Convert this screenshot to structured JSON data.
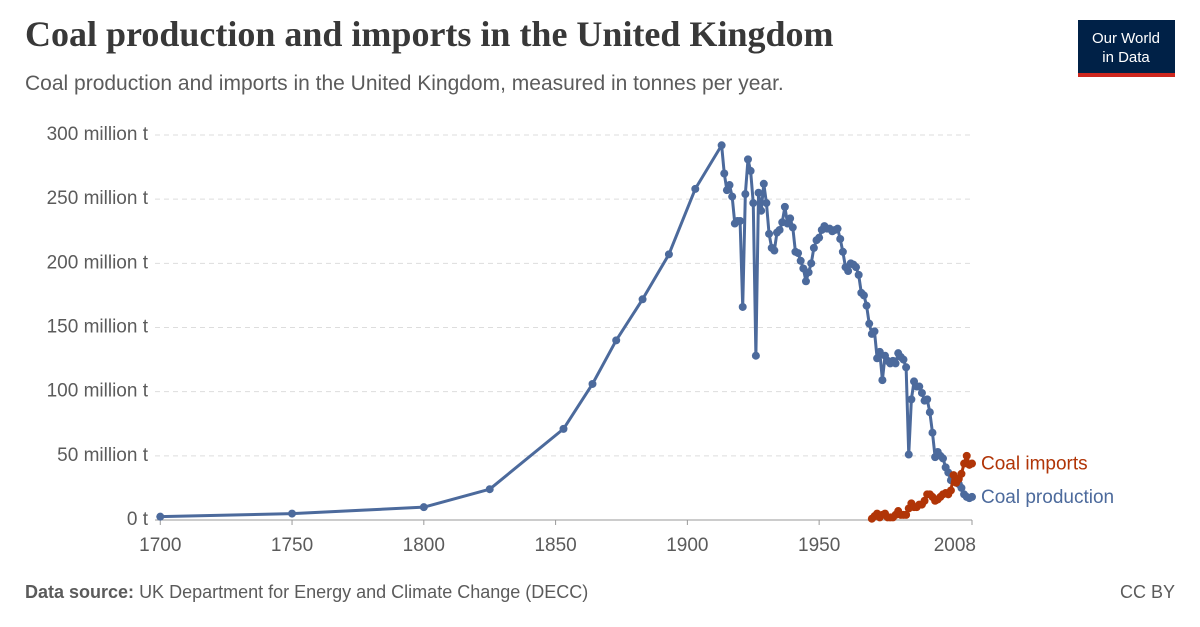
{
  "chart_data": {
    "type": "line",
    "title": "Coal production and imports in the United Kingdom",
    "subtitle": "Coal production and imports in the United Kingdom, measured in tonnes per year.",
    "xlim": [
      1698,
      2008
    ],
    "xticks": [
      1700,
      1750,
      1800,
      1850,
      1900,
      1950,
      2008
    ],
    "ylim": [
      0,
      300000000
    ],
    "yticks": [
      {
        "value": 0,
        "label": "0 t"
      },
      {
        "value": 50000000,
        "label": "50 million t"
      },
      {
        "value": 100000000,
        "label": "100 million t"
      },
      {
        "value": 150000000,
        "label": "150 million t"
      },
      {
        "value": 200000000,
        "label": "200 million t"
      },
      {
        "value": 250000000,
        "label": "250 million t"
      },
      {
        "value": 300000000,
        "label": "300 million t"
      }
    ],
    "grid": true,
    "series": [
      {
        "name": "Coal production",
        "color": "#4c6a9c",
        "x": [
          1700,
          1750,
          1800,
          1825,
          1853,
          1864,
          1873,
          1883,
          1893,
          1903,
          1913,
          1914,
          1915,
          1916,
          1917,
          1918,
          1919,
          1920,
          1921,
          1922,
          1923,
          1924,
          1925,
          1926,
          1927,
          1928,
          1929,
          1930,
          1931,
          1932,
          1933,
          1934,
          1935,
          1936,
          1937,
          1938,
          1939,
          1940,
          1941,
          1942,
          1943,
          1944,
          1945,
          1946,
          1947,
          1948,
          1949,
          1950,
          1951,
          1952,
          1953,
          1954,
          1955,
          1956,
          1957,
          1958,
          1959,
          1960,
          1961,
          1962,
          1963,
          1964,
          1965,
          1966,
          1967,
          1968,
          1969,
          1970,
          1971,
          1972,
          1973,
          1974,
          1975,
          1976,
          1977,
          1978,
          1979,
          1980,
          1981,
          1982,
          1983,
          1984,
          1985,
          1986,
          1987,
          1988,
          1989,
          1990,
          1991,
          1992,
          1993,
          1994,
          1995,
          1996,
          1997,
          1998,
          1999,
          2000,
          2001,
          2002,
          2003,
          2004,
          2005,
          2006,
          2007,
          2008
        ],
        "values": [
          2600000,
          5000000,
          10000000,
          24000000,
          71000000,
          106000000,
          140000000,
          172000000,
          207000000,
          258000000,
          292000000,
          270000000,
          257000000,
          261000000,
          252000000,
          231000000,
          233000000,
          233000000,
          166000000,
          254000000,
          281000000,
          272000000,
          247000000,
          128000000,
          255000000,
          241000000,
          262000000,
          247000000,
          223000000,
          212000000,
          210000000,
          224000000,
          226000000,
          232000000,
          244000000,
          231000000,
          235000000,
          228000000,
          209000000,
          208000000,
          202000000,
          196000000,
          186000000,
          193000000,
          200000000,
          212000000,
          218000000,
          220000000,
          226000000,
          229000000,
          227000000,
          227000000,
          225000000,
          226000000,
          227000000,
          219000000,
          209000000,
          197000000,
          194000000,
          200000000,
          199000000,
          197000000,
          191000000,
          177000000,
          175000000,
          167000000,
          153000000,
          145000000,
          147000000,
          126000000,
          131000000,
          109000000,
          128000000,
          124000000,
          122000000,
          124000000,
          122000000,
          130000000,
          127000000,
          125000000,
          119000000,
          51000000,
          94000000,
          108000000,
          104000000,
          104000000,
          99000000,
          93000000,
          94000000,
          84000000,
          68000000,
          49000000,
          53000000,
          50000000,
          48000000,
          41000000,
          37000000,
          31000000,
          32000000,
          30000000,
          28000000,
          25000000,
          20000000,
          18000000,
          17000000,
          18000000
        ]
      },
      {
        "name": "Coal imports",
        "color": "#b13507",
        "x": [
          1970,
          1971,
          1972,
          1973,
          1974,
          1975,
          1976,
          1977,
          1978,
          1979,
          1980,
          1981,
          1982,
          1983,
          1984,
          1985,
          1986,
          1987,
          1988,
          1989,
          1990,
          1991,
          1992,
          1993,
          1994,
          1995,
          1996,
          1997,
          1998,
          1999,
          2000,
          2001,
          2002,
          2003,
          2004,
          2005,
          2006,
          2007,
          2008
        ],
        "values": [
          1000000,
          3000000,
          5000000,
          2000000,
          4000000,
          5000000,
          2000000,
          2000000,
          2000000,
          4000000,
          7000000,
          4000000,
          4000000,
          4000000,
          9000000,
          13000000,
          10000000,
          10000000,
          12000000,
          12000000,
          15000000,
          20000000,
          20000000,
          18000000,
          15000000,
          16000000,
          18000000,
          20000000,
          21000000,
          20000000,
          23000000,
          35000000,
          29000000,
          32000000,
          36000000,
          44000000,
          50000000,
          43000000,
          44000000
        ]
      }
    ]
  },
  "footer": {
    "source_label": "Data source:",
    "source": "UK Department for Energy and Climate Change (DECC)",
    "license": "CC BY"
  },
  "logo": {
    "line1": "Our World",
    "line2": "in Data"
  }
}
